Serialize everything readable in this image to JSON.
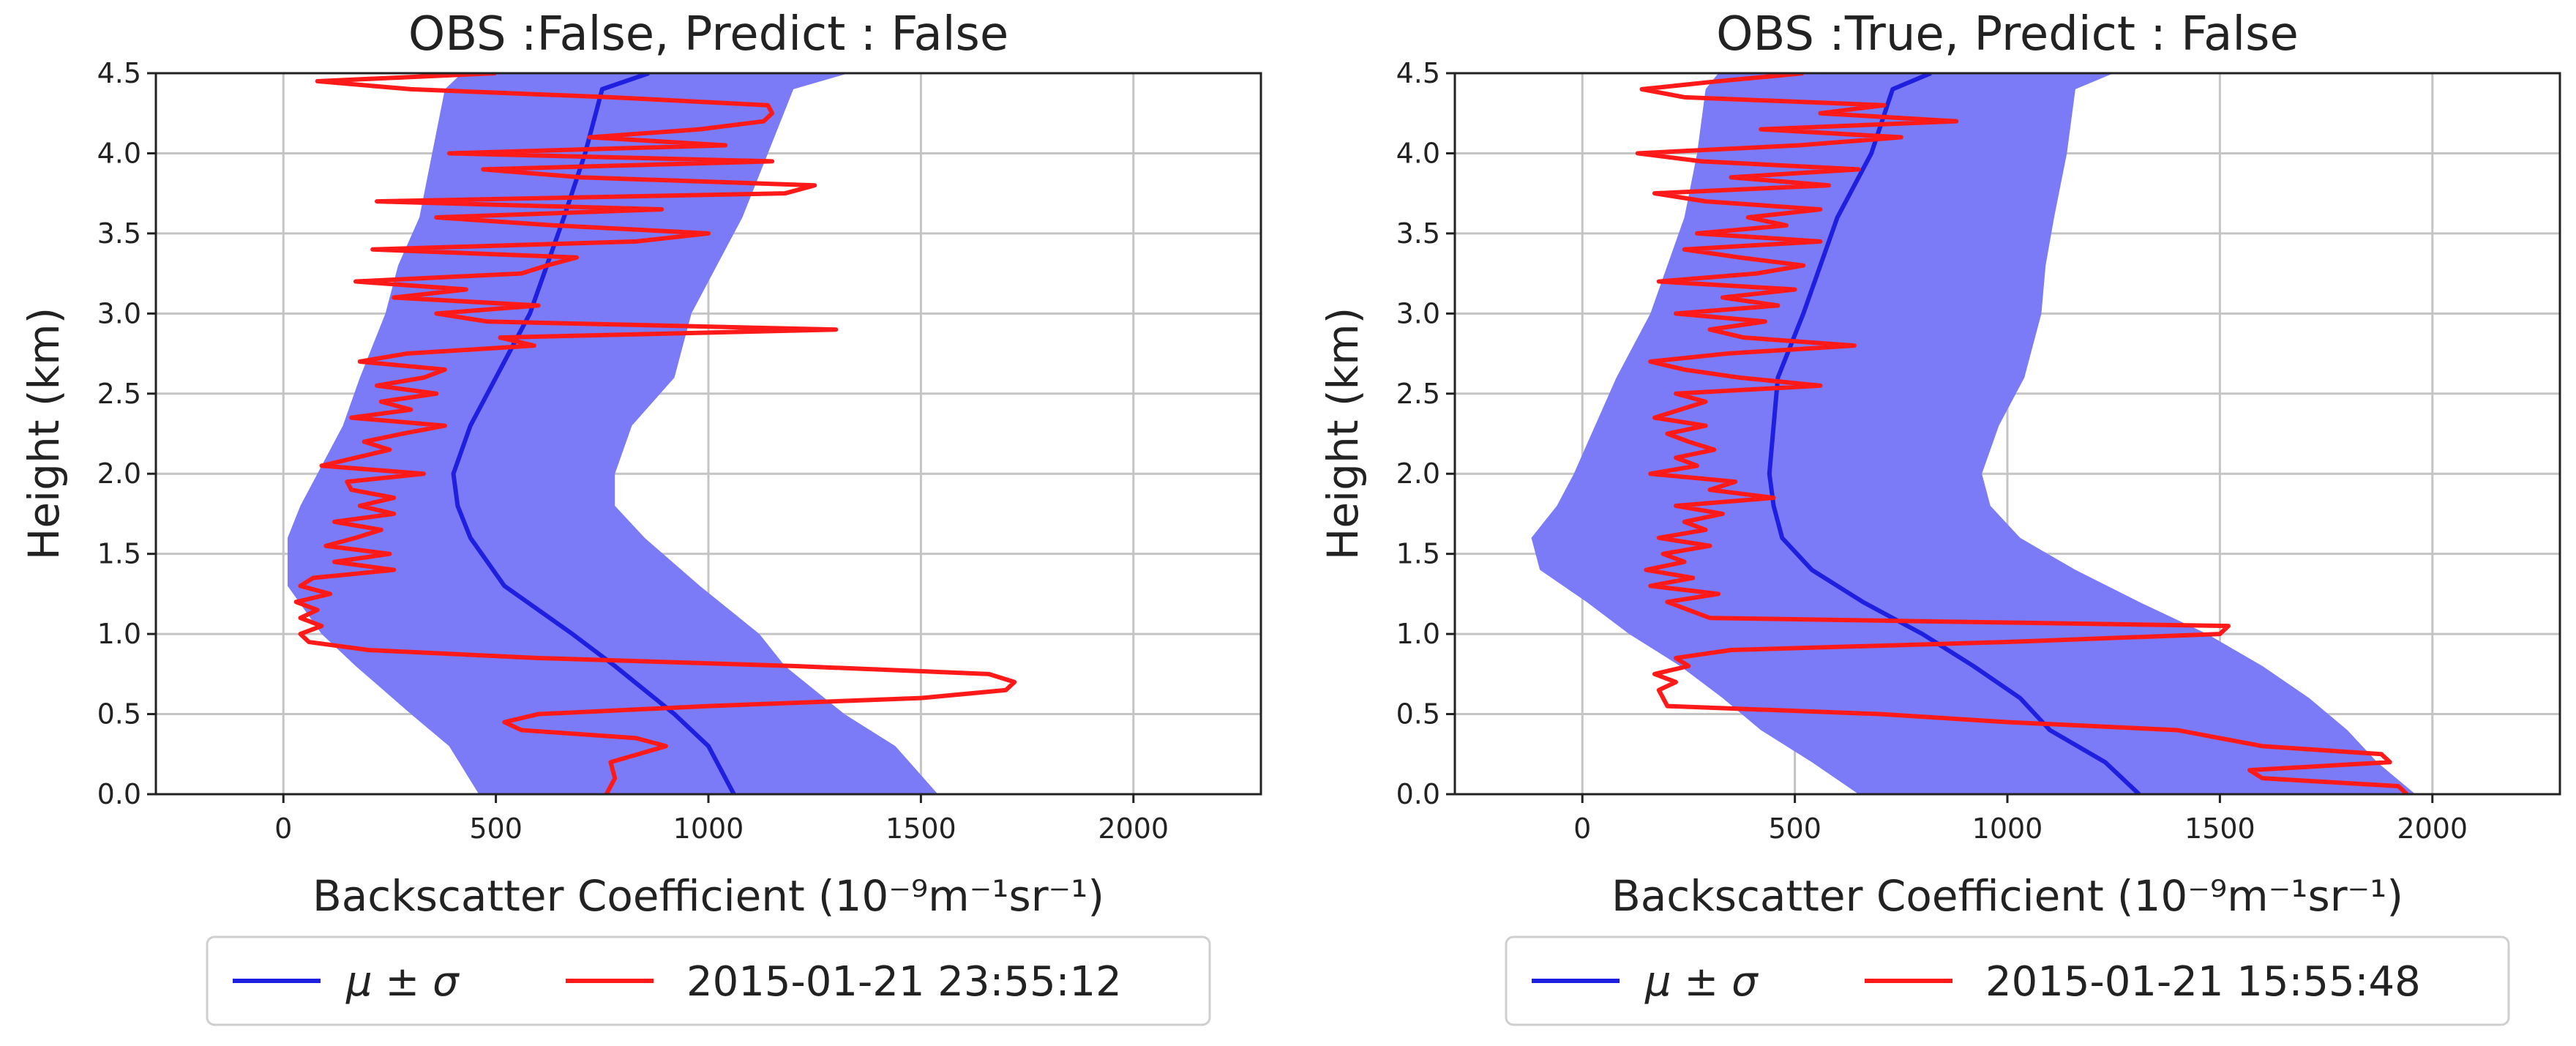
{
  "chart_data": [
    {
      "type": "line",
      "title": "OBS :False, Predict : False",
      "xlabel": "Backscatter Coefficient",
      "xlabel_unit": "(10⁻⁹m⁻¹sr⁻¹)",
      "ylabel": "Height (km)",
      "xlim": [
        -300,
        2300
      ],
      "ylim": [
        0,
        4.5
      ],
      "xticks": [
        0,
        500,
        1000,
        1500,
        2000
      ],
      "xtick_labels": [
        "0",
        "500",
        "1000",
        "1500",
        "2000"
      ],
      "yticks": [
        0.0,
        0.5,
        1.0,
        1.5,
        2.0,
        2.5,
        3.0,
        3.5,
        4.0,
        4.5
      ],
      "ytick_labels": [
        "0.0",
        "0.5",
        "1.0",
        "1.5",
        "2.0",
        "2.5",
        "3.0",
        "3.5",
        "4.0",
        "4.5"
      ],
      "grid": true,
      "legend_position": "below",
      "colors": {
        "band": "#7b7bf7",
        "mean": "#1f1fe0",
        "obs": "#ff1a1a"
      },
      "series": [
        {
          "name": "μ ± σ",
          "role": "mean_band",
          "height": [
            0.0,
            0.3,
            0.5,
            0.8,
            1.0,
            1.3,
            1.6,
            1.8,
            2.0,
            2.3,
            2.6,
            3.0,
            3.3,
            3.6,
            4.0,
            4.4,
            4.5
          ],
          "mean": [
            1060,
            1000,
            920,
            780,
            680,
            520,
            440,
            410,
            400,
            440,
            500,
            580,
            620,
            660,
            710,
            750,
            860
          ],
          "lower": [
            460,
            390,
            300,
            170,
            90,
            10,
            10,
            40,
            80,
            140,
            180,
            240,
            270,
            320,
            350,
            380,
            420
          ],
          "upper": [
            1540,
            1440,
            1320,
            1180,
            1120,
            980,
            850,
            780,
            780,
            820,
            920,
            960,
            1020,
            1080,
            1140,
            1200,
            1330
          ]
        },
        {
          "name": "2015-01-21 23:55:12",
          "role": "observation",
          "height": [
            0.0,
            0.1,
            0.2,
            0.3,
            0.35,
            0.4,
            0.45,
            0.5,
            0.55,
            0.6,
            0.65,
            0.7,
            0.75,
            0.8,
            0.85,
            0.9,
            0.95,
            1.0,
            1.05,
            1.1,
            1.15,
            1.2,
            1.25,
            1.3,
            1.35,
            1.4,
            1.45,
            1.5,
            1.55,
            1.6,
            1.65,
            1.7,
            1.75,
            1.8,
            1.85,
            1.9,
            1.95,
            2.0,
            2.05,
            2.1,
            2.15,
            2.2,
            2.25,
            2.3,
            2.35,
            2.4,
            2.45,
            2.5,
            2.55,
            2.6,
            2.65,
            2.7,
            2.75,
            2.8,
            2.85,
            2.9,
            2.95,
            3.0,
            3.05,
            3.1,
            3.15,
            3.2,
            3.25,
            3.3,
            3.35,
            3.4,
            3.45,
            3.5,
            3.55,
            3.6,
            3.65,
            3.7,
            3.75,
            3.8,
            3.85,
            3.9,
            3.95,
            4.0,
            4.05,
            4.1,
            4.15,
            4.2,
            4.25,
            4.3,
            4.35,
            4.4,
            4.45,
            4.5
          ],
          "values": [
            760,
            780,
            770,
            900,
            830,
            560,
            520,
            600,
            1000,
            1500,
            1700,
            1720,
            1660,
            1200,
            600,
            200,
            60,
            40,
            90,
            40,
            80,
            30,
            110,
            40,
            70,
            260,
            120,
            250,
            100,
            170,
            230,
            120,
            260,
            180,
            260,
            160,
            150,
            330,
            90,
            170,
            250,
            190,
            280,
            380,
            160,
            300,
            230,
            360,
            220,
            330,
            380,
            180,
            290,
            590,
            510,
            1300,
            480,
            360,
            600,
            260,
            430,
            170,
            560,
            620,
            690,
            210,
            830,
            1000,
            640,
            360,
            890,
            220,
            1180,
            1250,
            700,
            470,
            1150,
            390,
            1040,
            720,
            980,
            1130,
            1150,
            1140,
            770,
            300,
            80,
            500
          ]
        }
      ]
    },
    {
      "type": "line",
      "title": "OBS :True, Predict : False",
      "xlabel": "Backscatter Coefficient",
      "xlabel_unit": "(10⁻⁹m⁻¹sr⁻¹)",
      "ylabel": "Height (km)",
      "xlim": [
        -300,
        2300
      ],
      "ylim": [
        0,
        4.5
      ],
      "xticks": [
        0,
        500,
        1000,
        1500,
        2000
      ],
      "xtick_labels": [
        "0",
        "500",
        "1000",
        "1500",
        "2000"
      ],
      "yticks": [
        0.0,
        0.5,
        1.0,
        1.5,
        2.0,
        2.5,
        3.0,
        3.5,
        4.0,
        4.5
      ],
      "ytick_labels": [
        "0.0",
        "0.5",
        "1.0",
        "1.5",
        "2.0",
        "2.5",
        "3.0",
        "3.5",
        "4.0",
        "4.5"
      ],
      "grid": true,
      "legend_position": "below",
      "colors": {
        "band": "#7b7bf7",
        "mean": "#1f1fe0",
        "obs": "#ff1a1a"
      },
      "series": [
        {
          "name": "μ ± σ",
          "role": "mean_band",
          "height": [
            0.0,
            0.2,
            0.4,
            0.6,
            0.8,
            1.0,
            1.2,
            1.4,
            1.6,
            1.8,
            2.0,
            2.3,
            2.6,
            3.0,
            3.3,
            3.6,
            4.0,
            4.4,
            4.5
          ],
          "mean": [
            1310,
            1230,
            1100,
            1030,
            920,
            800,
            660,
            540,
            470,
            450,
            440,
            450,
            460,
            520,
            560,
            600,
            680,
            730,
            820
          ],
          "lower": [
            650,
            540,
            420,
            330,
            230,
            110,
            10,
            -100,
            -120,
            -60,
            -20,
            30,
            80,
            160,
            200,
            240,
            270,
            290,
            320
          ],
          "upper": [
            1960,
            1870,
            1800,
            1710,
            1600,
            1470,
            1310,
            1160,
            1030,
            960,
            940,
            980,
            1040,
            1080,
            1090,
            1110,
            1140,
            1160,
            1250
          ]
        },
        {
          "name": "2015-01-21 15:55:48",
          "role": "observation",
          "height": [
            0.0,
            0.05,
            0.1,
            0.15,
            0.2,
            0.25,
            0.3,
            0.35,
            0.4,
            0.45,
            0.5,
            0.55,
            0.6,
            0.65,
            0.7,
            0.75,
            0.8,
            0.85,
            0.9,
            0.95,
            1.0,
            1.05,
            1.1,
            1.15,
            1.2,
            1.25,
            1.3,
            1.35,
            1.4,
            1.45,
            1.5,
            1.55,
            1.6,
            1.65,
            1.7,
            1.75,
            1.8,
            1.85,
            1.9,
            1.95,
            2.0,
            2.05,
            2.1,
            2.15,
            2.2,
            2.25,
            2.3,
            2.35,
            2.4,
            2.45,
            2.5,
            2.55,
            2.6,
            2.65,
            2.7,
            2.75,
            2.8,
            2.85,
            2.9,
            2.95,
            3.0,
            3.05,
            3.1,
            3.15,
            3.2,
            3.25,
            3.3,
            3.35,
            3.4,
            3.45,
            3.5,
            3.55,
            3.6,
            3.65,
            3.7,
            3.75,
            3.8,
            3.85,
            3.9,
            3.95,
            4.0,
            4.05,
            4.1,
            4.15,
            4.2,
            4.25,
            4.3,
            4.35,
            4.4,
            4.45,
            4.5
          ],
          "values": [
            1940,
            1920,
            1600,
            1570,
            1900,
            1880,
            1600,
            1500,
            1400,
            1000,
            700,
            200,
            190,
            180,
            220,
            170,
            250,
            220,
            350,
            1000,
            1500,
            1520,
            300,
            250,
            200,
            320,
            160,
            260,
            150,
            240,
            190,
            300,
            180,
            290,
            240,
            330,
            220,
            450,
            300,
            360,
            160,
            270,
            220,
            310,
            250,
            200,
            290,
            170,
            230,
            290,
            220,
            560,
            370,
            240,
            160,
            340,
            640,
            380,
            300,
            430,
            220,
            460,
            330,
            500,
            180,
            410,
            520,
            370,
            240,
            560,
            270,
            480,
            390,
            560,
            290,
            170,
            580,
            350,
            650,
            280,
            130,
            510,
            750,
            420,
            880,
            560,
            710,
            240,
            140,
            320,
            520
          ]
        }
      ]
    }
  ]
}
